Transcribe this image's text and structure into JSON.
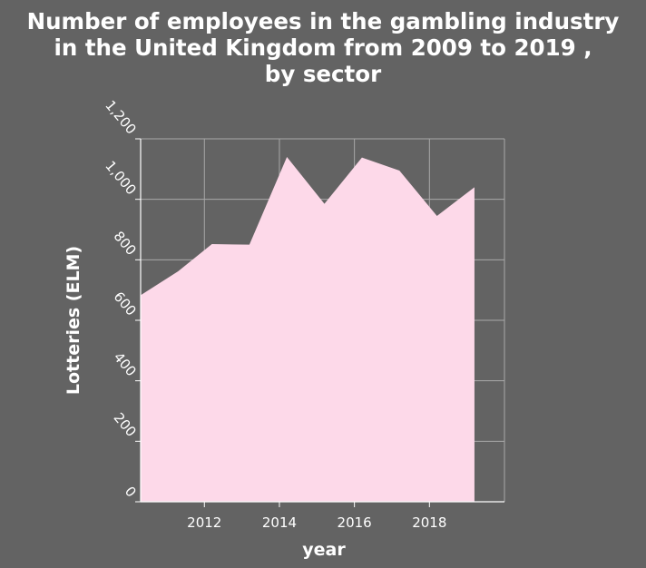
{
  "chart_data": {
    "type": "area",
    "title": [
      "Number of employees in the gambling industry",
      "in the United Kingdom from 2009 to 2019 ,",
      "by sector"
    ],
    "xlabel": "year",
    "ylabel": "Lotteries (ELM)",
    "xlim": [
      2010.3,
      2020.0
    ],
    "ylim": [
      0,
      1200
    ],
    "x_ticks": [
      2012,
      2014,
      2016,
      2018
    ],
    "x_tick_labels": [
      "2012",
      "2014",
      "2016",
      "2018"
    ],
    "y_ticks": [
      0,
      200,
      400,
      600,
      800,
      1000,
      1200
    ],
    "y_tick_labels": [
      "0",
      "200",
      "400",
      "600",
      "800",
      "1,000",
      "1,200"
    ],
    "grid": true,
    "fill_color": "#fdd9e9",
    "grid_color": "#a8a8a8",
    "series": [
      {
        "x": [
          2010.3,
          2011.3,
          2012.2,
          2013.2,
          2014.2,
          2015.2,
          2016.2,
          2017.2,
          2018.2,
          2019.2
        ],
        "values": [
          683,
          762,
          852,
          850,
          1140,
          985,
          1138,
          1095,
          945,
          1040
        ]
      }
    ]
  }
}
